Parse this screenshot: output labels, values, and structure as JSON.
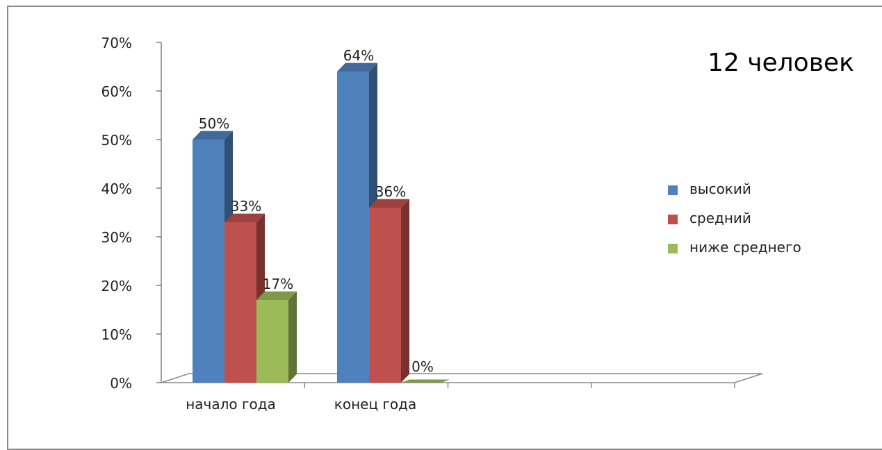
{
  "chart_data": {
    "type": "bar",
    "categories": [
      "начало года",
      "конец года"
    ],
    "series": [
      {
        "name": "высокий",
        "values": [
          50,
          64
        ],
        "labels": [
          "50%",
          "64%"
        ]
      },
      {
        "name": "средний",
        "values": [
          33,
          36
        ],
        "labels": [
          "33%",
          "36%"
        ]
      },
      {
        "name": "ниже среднего",
        "values": [
          17,
          0
        ],
        "labels": [
          "17%",
          "0%"
        ]
      }
    ],
    "yticks": [
      "0%",
      "10%",
      "20%",
      "30%",
      "40%",
      "50%",
      "60%",
      "70%"
    ],
    "ylim": [
      0,
      70
    ],
    "legend_position": "right",
    "colors": {
      "высокий": "#4f81bd",
      "средний": "#c0504d",
      "ниже среднего": "#9bbb59"
    }
  },
  "annotation": "12 человек"
}
